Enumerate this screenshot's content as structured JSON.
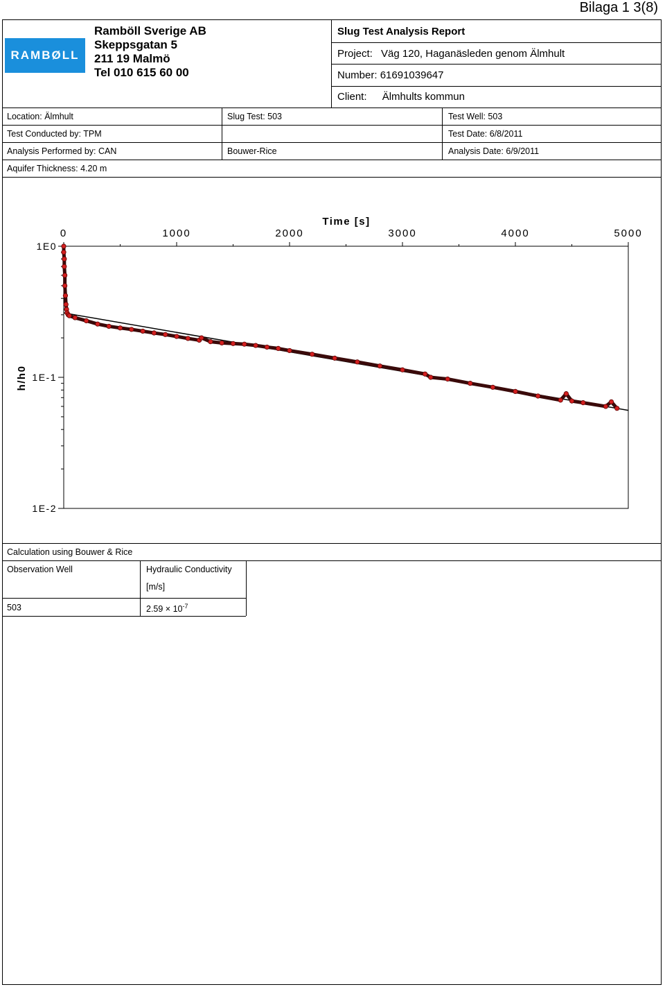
{
  "page_label": "Bilaga 1  3(8)",
  "logo_text": "RAMBØLL",
  "company": {
    "name": "Ramböll Sverige AB",
    "street": "Skeppsgatan 5",
    "city": "211 19 Malmö",
    "phone": "Tel 010  615 60 00"
  },
  "report": {
    "title": "Slug Test Analysis Report",
    "project_label": "Project:",
    "project_value": "Väg 120, Haganäsleden genom Älmhult",
    "number_label": "Number:",
    "number_value": "61691039647",
    "client_label": "Client:",
    "client_value": "Älmhults kommun"
  },
  "info": {
    "location": "Location: Älmhult",
    "slug_test": "Slug Test: 503",
    "test_well": "Test Well: 503",
    "conducted_by": "Test Conducted by: TPM",
    "test_date": "Test Date: 6/8/2011",
    "performed_by": "Analysis Performed by:  CAN",
    "method": "Bouwer-Rice",
    "analysis_date": "Analysis Date: 6/9/2011",
    "aquifer": "Aquifer Thickness: 4.20 m"
  },
  "chart_data": {
    "type": "scatter",
    "title": "",
    "xlabel": "Time [s]",
    "ylabel": "h/h0",
    "x_axis_position": "top",
    "y_scale": "log",
    "xlim": [
      0,
      5000
    ],
    "ylim": [
      0.01,
      1
    ],
    "x_ticks": [
      "0",
      "1000",
      "2000",
      "3000",
      "4000",
      "5000"
    ],
    "y_ticks": [
      "1E0",
      "1E-1",
      "1E-2"
    ],
    "grid": false,
    "point_color": "#d21f1f",
    "line_color": "#000000",
    "series": [
      {
        "kind": "points",
        "x": [
          0,
          0,
          5,
          5,
          10,
          10,
          15,
          20,
          25,
          30,
          40,
          50,
          100,
          200,
          300,
          400,
          500,
          600,
          700,
          800,
          900,
          1000,
          1100,
          1200,
          1220,
          1300,
          1400,
          1500,
          1600,
          1700,
          1800,
          1900,
          2000,
          2200,
          2400,
          2600,
          2800,
          3000,
          3200,
          3250,
          3400,
          3600,
          3800,
          4000,
          4200,
          4400,
          4450,
          4500,
          4600,
          4800,
          4850,
          4900
        ],
        "y": [
          1.0,
          0.9,
          0.8,
          0.7,
          0.6,
          0.5,
          0.42,
          0.36,
          0.33,
          0.31,
          0.3,
          0.295,
          0.285,
          0.27,
          0.255,
          0.245,
          0.238,
          0.232,
          0.225,
          0.218,
          0.212,
          0.205,
          0.198,
          0.192,
          0.2,
          0.187,
          0.183,
          0.181,
          0.179,
          0.175,
          0.17,
          0.166,
          0.16,
          0.15,
          0.14,
          0.131,
          0.122,
          0.114,
          0.106,
          0.1,
          0.097,
          0.09,
          0.084,
          0.078,
          0.072,
          0.067,
          0.075,
          0.066,
          0.064,
          0.06,
          0.065,
          0.058
        ]
      },
      {
        "kind": "fit",
        "x": [
          0,
          5000
        ],
        "y": [
          0.31,
          0.056
        ]
      }
    ]
  },
  "results": {
    "calc_title": "Calculation using Bouwer & Rice",
    "col1_header": "Observation Well",
    "col2_header": "Hydraulic Conductivity",
    "col2_unit": "[m/s]",
    "row_well": "503",
    "row_k_mantissa": "2.59 × 10",
    "row_k_exp": "-7"
  }
}
